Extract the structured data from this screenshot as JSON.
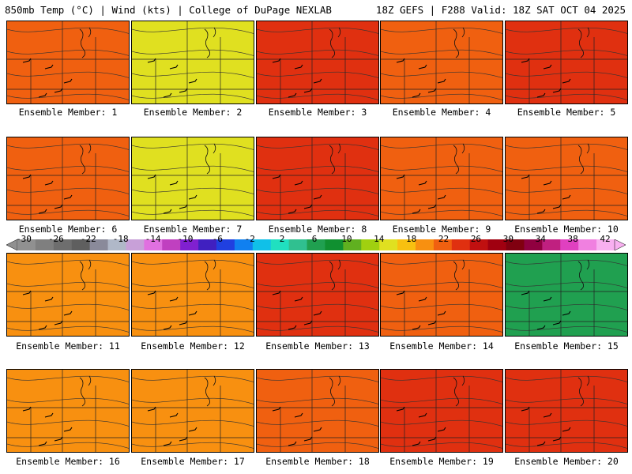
{
  "header": {
    "left": "850mb Temp (°C) | Wind (kts) | College of DuPage NEXLAB",
    "right": "18Z GEFS | F288 Valid: 18Z SAT OCT 04 2025"
  },
  "colorbar": {
    "ticks": [
      "-30",
      "-26",
      "-22",
      "-18",
      "-14",
      "-10",
      "-6",
      "-2",
      "2",
      "6",
      "10",
      "14",
      "18",
      "22",
      "26",
      "30",
      "34",
      "38",
      "42"
    ],
    "colors": [
      "#909090",
      "#7f7f7f",
      "#6e6e6e",
      "#5f5f5f",
      "#8a8a9a",
      "#b0b8c8",
      "#c8a0d8",
      "#e070e0",
      "#c040c0",
      "#8020d0",
      "#4020c0",
      "#2040e0",
      "#1080f0",
      "#10c0e8",
      "#20e0c0",
      "#30c090",
      "#20a050",
      "#109030",
      "#60b020",
      "#a0d010",
      "#e0e020",
      "#f8c010",
      "#f89010",
      "#f06010",
      "#e03010",
      "#c01010",
      "#a00010",
      "#800010",
      "#900040",
      "#c02080",
      "#e040c0",
      "#f080e0",
      "#f8b0f0"
    ]
  },
  "members": [
    {
      "label": "Ensemble Member: 1",
      "warmth": 0.55
    },
    {
      "label": "Ensemble Member: 2",
      "warmth": 0.35
    },
    {
      "label": "Ensemble Member: 3",
      "warmth": 0.75
    },
    {
      "label": "Ensemble Member: 4",
      "warmth": 0.6
    },
    {
      "label": "Ensemble Member: 5",
      "warmth": 0.8
    },
    {
      "label": "Ensemble Member: 6",
      "warmth": 0.6
    },
    {
      "label": "Ensemble Member: 7",
      "warmth": 0.3
    },
    {
      "label": "Ensemble Member: 8",
      "warmth": 0.7
    },
    {
      "label": "Ensemble Member: 9",
      "warmth": 0.6
    },
    {
      "label": "Ensemble Member: 10",
      "warmth": 0.55
    },
    {
      "label": "Ensemble Member: 11",
      "warmth": 0.5
    },
    {
      "label": "Ensemble Member: 12",
      "warmth": 0.5
    },
    {
      "label": "Ensemble Member: 13",
      "warmth": 0.7
    },
    {
      "label": "Ensemble Member: 14",
      "warmth": 0.55
    },
    {
      "label": "Ensemble Member: 15",
      "warmth": 0.1
    },
    {
      "label": "Ensemble Member: 16",
      "warmth": 0.45
    },
    {
      "label": "Ensemble Member: 17",
      "warmth": 0.45
    },
    {
      "label": "Ensemble Member: 18",
      "warmth": 0.6
    },
    {
      "label": "Ensemble Member: 19",
      "warmth": 0.65
    },
    {
      "label": "Ensemble Member: 20",
      "warmth": 0.65
    }
  ]
}
